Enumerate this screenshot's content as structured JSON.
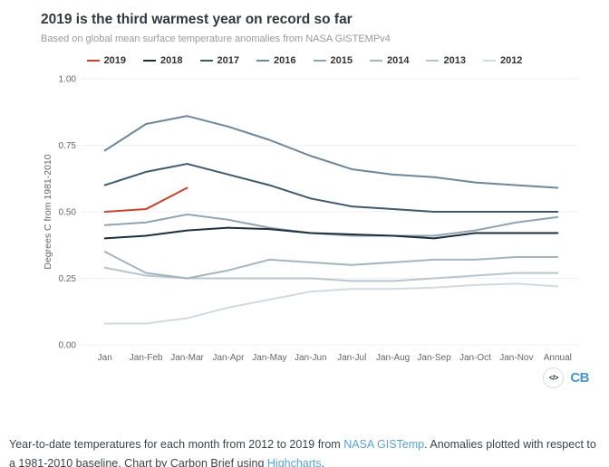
{
  "chart_data": {
    "type": "line",
    "title": "2019 is the third warmest year on record so far",
    "subtitle": "Based on global mean surface temperature anomalies from NASA GISTEMPv4",
    "ylabel": "Degrees C from 1981-2010",
    "xlabel": "",
    "ylim": [
      0,
      1.0
    ],
    "yticks": [
      "0.00",
      "0.25",
      "0.50",
      "0.75",
      "1.00"
    ],
    "grid": "horizontal",
    "legend_position": "top",
    "categories": [
      "Jan",
      "Jan-Feb",
      "Jan-Mar",
      "Jan-Apr",
      "Jan-May",
      "Jan-Jun",
      "Jan-Jul",
      "Jan-Aug",
      "Jan-Sep",
      "Jan-Oct",
      "Jan-Nov",
      "Annual"
    ],
    "series": [
      {
        "name": "2019",
        "color": "#c5442e",
        "values": [
          0.5,
          0.51,
          0.59
        ]
      },
      {
        "name": "2018",
        "color": "#1e2f3d",
        "values": [
          0.4,
          0.41,
          0.43,
          0.44,
          0.435,
          0.42,
          0.415,
          0.41,
          0.4,
          0.42,
          0.42,
          0.42
        ]
      },
      {
        "name": "2017",
        "color": "#3e586c",
        "values": [
          0.6,
          0.65,
          0.68,
          0.64,
          0.6,
          0.55,
          0.52,
          0.51,
          0.5,
          0.5,
          0.5,
          0.5
        ]
      },
      {
        "name": "2016",
        "color": "#6d8799",
        "values": [
          0.73,
          0.83,
          0.86,
          0.82,
          0.77,
          0.71,
          0.66,
          0.64,
          0.63,
          0.61,
          0.6,
          0.59
        ]
      },
      {
        "name": "2015",
        "color": "#8fa3b0",
        "values": [
          0.45,
          0.46,
          0.49,
          0.47,
          0.44,
          0.42,
          0.41,
          0.41,
          0.41,
          0.43,
          0.46,
          0.48
        ]
      },
      {
        "name": "2014",
        "color": "#a4b4bf",
        "values": [
          0.35,
          0.27,
          0.25,
          0.28,
          0.32,
          0.31,
          0.3,
          0.31,
          0.32,
          0.32,
          0.33,
          0.33
        ]
      },
      {
        "name": "2013",
        "color": "#b9c5cd",
        "values": [
          0.29,
          0.26,
          0.25,
          0.25,
          0.25,
          0.25,
          0.24,
          0.24,
          0.25,
          0.26,
          0.27,
          0.27
        ]
      },
      {
        "name": "2012",
        "color": "#d2dade",
        "values": [
          0.08,
          0.08,
          0.1,
          0.14,
          0.17,
          0.2,
          0.21,
          0.21,
          0.215,
          0.225,
          0.23,
          0.22
        ]
      }
    ]
  },
  "embed": {
    "code_icon": "</>",
    "logo_text": "CB"
  },
  "footer": {
    "text1": "Year-to-date temperatures for each month from 2012 to 2019 from ",
    "link1": "NASA GISTemp",
    "text2": ". Anomalies plotted with respect to a 1981-2010 baseline. Chart by Carbon Brief using ",
    "link2": "Highcharts",
    "text3": "."
  }
}
